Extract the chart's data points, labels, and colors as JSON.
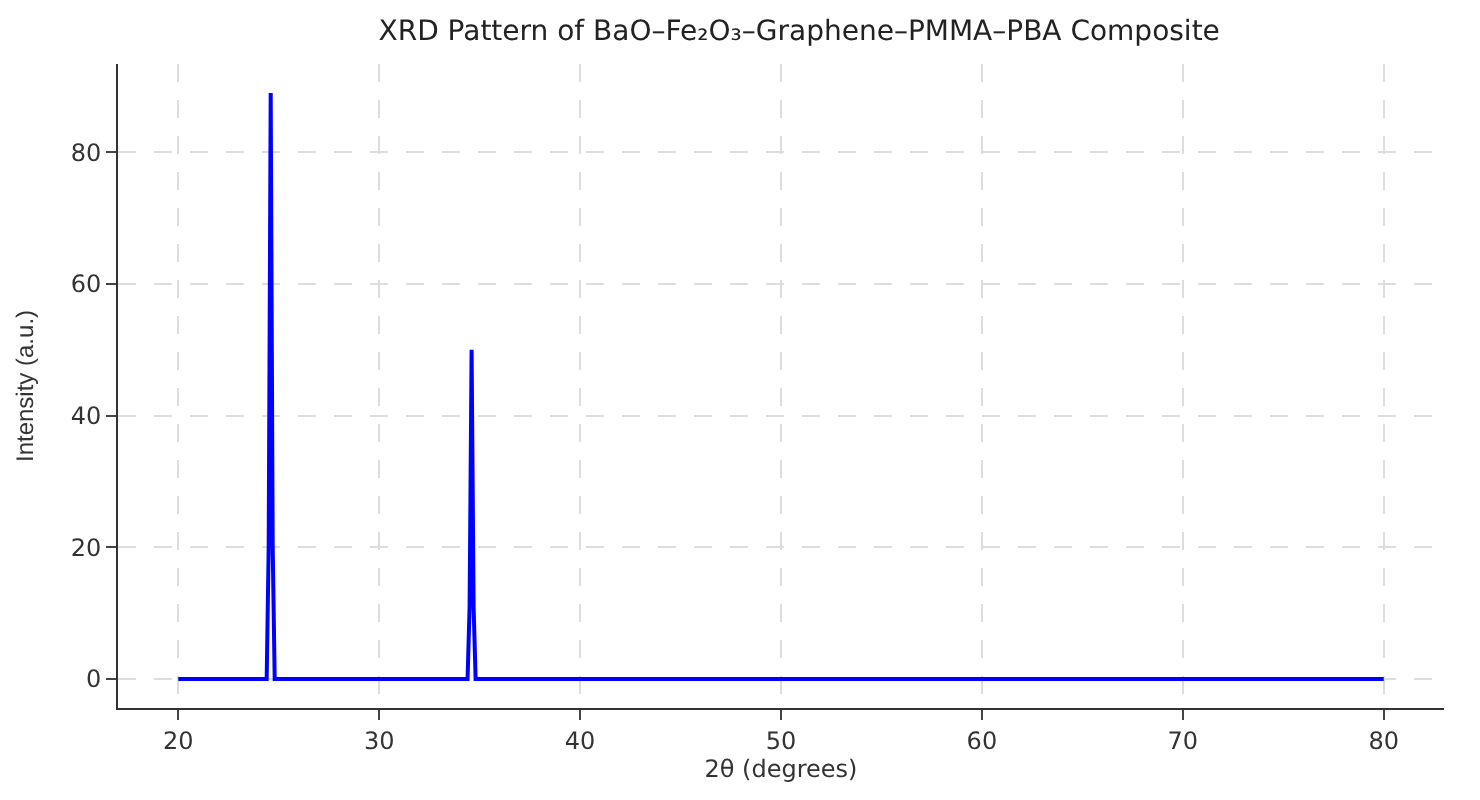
{
  "chart_data": {
    "type": "line",
    "title": "XRD Pattern of BaO–Fe₂O₃–Graphene–PMMA–PBA Composite",
    "xlabel": "2θ (degrees)",
    "ylabel": "Intensity (a.u.)",
    "x": [
      20,
      24.4,
      24.5,
      24.6,
      24.7,
      24.8,
      34.4,
      34.5,
      34.6,
      34.7,
      34.8,
      80
    ],
    "series": [
      {
        "color": "#0000ff",
        "values": [
          0,
          0,
          20,
          89,
          20,
          0,
          0,
          11,
          50,
          11,
          0,
          0
        ]
      }
    ],
    "xlim": [
      17,
      83
    ],
    "xticks": [
      20,
      30,
      40,
      50,
      60,
      70,
      80
    ],
    "ylim": [
      -4.4,
      93.4
    ],
    "yticks": [
      0,
      20,
      40,
      60,
      80
    ],
    "grid": true,
    "legend": false,
    "marker": "none",
    "line_style": "solid"
  }
}
